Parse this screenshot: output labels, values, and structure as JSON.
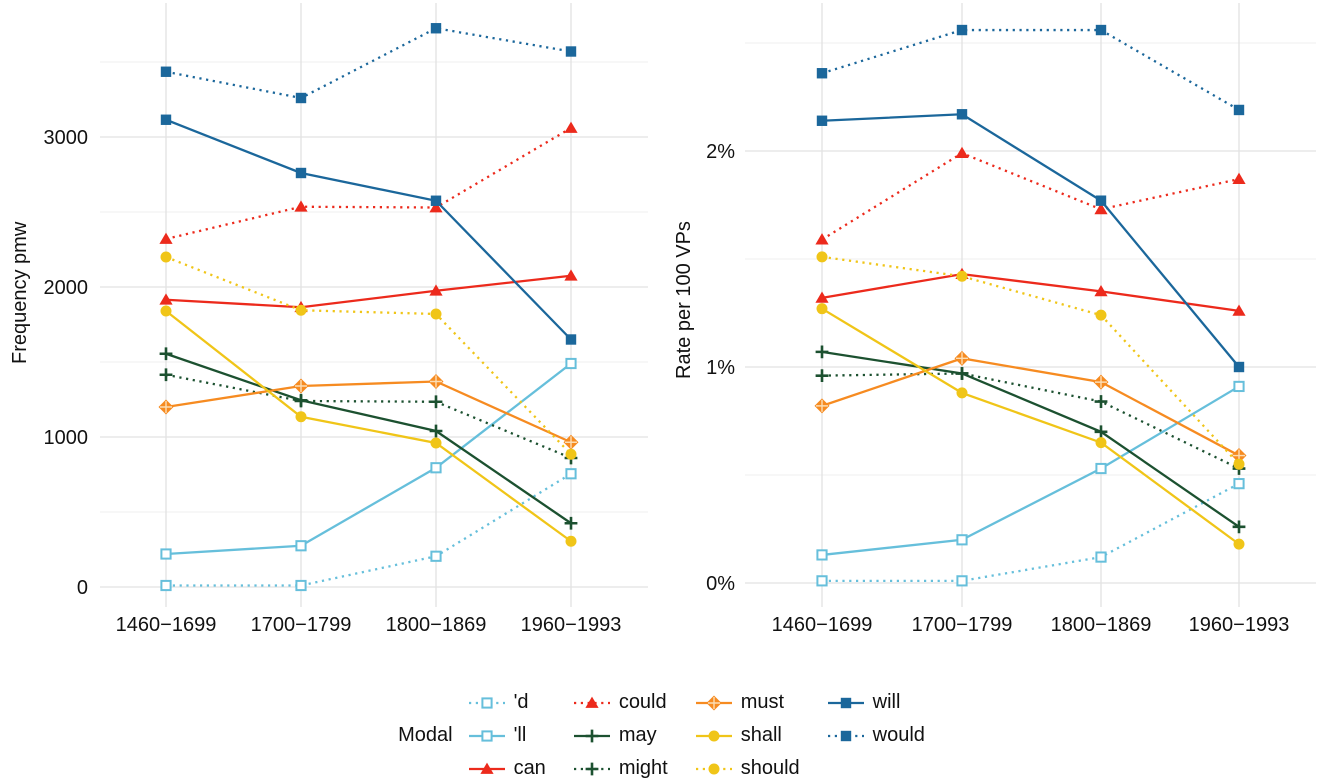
{
  "legend": {
    "title": "Modal",
    "items": [
      "'d",
      "'ll",
      "can",
      "could",
      "may",
      "might",
      "must",
      "shall",
      "should",
      "will",
      "would"
    ]
  },
  "colors": {
    "lightblue": "#66BFDB",
    "darkblue": "#1B679B",
    "red": "#EC2A1C",
    "orange": "#F68B21",
    "darkgreen": "#1C5130",
    "yellow": "#F0C518",
    "grid_major": "#E2E2E2",
    "grid_minor": "#EFEFEF",
    "text": "#111111",
    "background": "#FFFFFF"
  },
  "styles": {
    "'d": {
      "color": "lightblue",
      "line": "dotted",
      "marker": "square-open"
    },
    "'ll": {
      "color": "lightblue",
      "line": "solid",
      "marker": "square-open"
    },
    "can": {
      "color": "red",
      "line": "solid",
      "marker": "triangle"
    },
    "could": {
      "color": "red",
      "line": "dotted",
      "marker": "triangle"
    },
    "may": {
      "color": "darkgreen",
      "line": "solid",
      "marker": "plus"
    },
    "might": {
      "color": "darkgreen",
      "line": "dotted",
      "marker": "plus"
    },
    "must": {
      "color": "orange",
      "line": "solid",
      "marker": "diamond-plus"
    },
    "shall": {
      "color": "yellow",
      "line": "solid",
      "marker": "circle"
    },
    "should": {
      "color": "yellow",
      "line": "dotted",
      "marker": "circle"
    },
    "will": {
      "color": "darkblue",
      "line": "solid",
      "marker": "square"
    },
    "would": {
      "color": "darkblue",
      "line": "dotted",
      "marker": "square"
    }
  },
  "chart_data": [
    {
      "type": "line",
      "title": "",
      "xlabel": "",
      "ylabel": "Frequency pmw",
      "categories": [
        "1460−1699",
        "1700−1799",
        "1800−1869",
        "1960−1993"
      ],
      "ylim": [
        0,
        3890
      ],
      "grid": "on",
      "legend_position": "bottom",
      "yticks": [
        {
          "value": 0,
          "label": "0"
        },
        {
          "value": 1000,
          "label": "1000"
        },
        {
          "value": 2000,
          "label": "2000"
        },
        {
          "value": 3000,
          "label": "3000"
        }
      ],
      "minor_ticks": [
        500,
        1500,
        2500,
        3500
      ],
      "series": [
        {
          "name": "'d",
          "values": [
            10,
            10,
            205,
            755
          ]
        },
        {
          "name": "'ll",
          "values": [
            220,
            275,
            795,
            1490
          ]
        },
        {
          "name": "can",
          "values": [
            1915,
            1865,
            1975,
            2075
          ]
        },
        {
          "name": "could",
          "values": [
            2320,
            2535,
            2530,
            3060
          ]
        },
        {
          "name": "may",
          "values": [
            1555,
            1245,
            1040,
            425
          ]
        },
        {
          "name": "might",
          "values": [
            1415,
            1240,
            1235,
            860
          ]
        },
        {
          "name": "must",
          "values": [
            1200,
            1340,
            1370,
            965
          ]
        },
        {
          "name": "shall",
          "values": [
            1840,
            1135,
            960,
            305
          ]
        },
        {
          "name": "should",
          "values": [
            2200,
            1845,
            1820,
            885
          ]
        },
        {
          "name": "will",
          "values": [
            3115,
            2760,
            2575,
            1650
          ]
        },
        {
          "name": "would",
          "values": [
            3435,
            3260,
            3725,
            3570
          ]
        }
      ]
    },
    {
      "type": "line",
      "title": "",
      "xlabel": "",
      "ylabel": "Rate per 100 VPs",
      "categories": [
        "1460−1699",
        "1700−1799",
        "1800−1869",
        "1960−1993"
      ],
      "ylim": [
        0,
        2.69
      ],
      "grid": "on",
      "legend_position": "bottom",
      "yticks": [
        {
          "value": 0,
          "label": "0%"
        },
        {
          "value": 1,
          "label": "1%"
        },
        {
          "value": 2,
          "label": "2%"
        }
      ],
      "minor_ticks": [
        0.5,
        1.5,
        2.5
      ],
      "series": [
        {
          "name": "'d",
          "values": [
            0.01,
            0.01,
            0.12,
            0.46
          ]
        },
        {
          "name": "'ll",
          "values": [
            0.13,
            0.2,
            0.53,
            0.91
          ]
        },
        {
          "name": "can",
          "values": [
            1.32,
            1.43,
            1.35,
            1.26
          ]
        },
        {
          "name": "could",
          "values": [
            1.59,
            1.99,
            1.73,
            1.87
          ]
        },
        {
          "name": "may",
          "values": [
            1.07,
            0.97,
            0.7,
            0.26
          ]
        },
        {
          "name": "might",
          "values": [
            0.96,
            0.97,
            0.84,
            0.53
          ]
        },
        {
          "name": "must",
          "values": [
            0.82,
            1.04,
            0.93,
            0.59
          ]
        },
        {
          "name": "shall",
          "values": [
            1.27,
            0.88,
            0.65,
            0.18
          ]
        },
        {
          "name": "should",
          "values": [
            1.51,
            1.42,
            1.24,
            0.55
          ]
        },
        {
          "name": "will",
          "values": [
            2.14,
            2.17,
            1.77,
            1.0
          ]
        },
        {
          "name": "would",
          "values": [
            2.36,
            2.56,
            2.56,
            2.19
          ]
        }
      ]
    }
  ]
}
